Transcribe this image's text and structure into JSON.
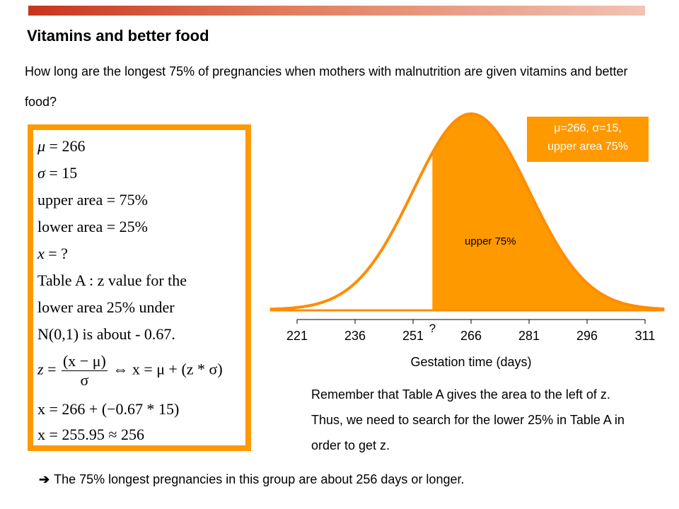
{
  "slide": {
    "title": "Vitamins and better food",
    "question": "How long are the longest 75% of pregnancies when mothers with malnutrition are given vitamins and better food?",
    "remember": "Remember that Table A gives the area to the left of z. Thus, we need to search for the lower 25% in Table A in order to get z.",
    "conclusion_arrow": "➔",
    "conclusion": "The 75% longest pregnancies in this group are about 256 days or longer."
  },
  "equations": {
    "mu_lhs": "μ",
    "mu_rhs": " = 266",
    "sigma_lhs": "σ",
    "sigma_rhs": " = 15",
    "upper": "upper area = 75%",
    "lower": "lower area = 25%",
    "x_lhs": "x",
    "x_rhs": " = ?",
    "table1": "Table A : z value for the",
    "table2": "lower area  25% under",
    "table3": "N(0,1) is about - 0.67.",
    "z_lhs": "z",
    "z_eq": " = ",
    "z_num": "(x − μ)",
    "z_den": "σ",
    "z_iff": " ⇔ x = μ + (z * σ)",
    "calc1": "x = 266 + (−0.67 * 15)",
    "calc2": "x = 255.95 ≈ 256"
  },
  "legend": {
    "line1": "μ=266, σ=15,",
    "line2": "upper area 75%"
  },
  "colors": {
    "accent": "#ff9900",
    "curve": "#ff8c00",
    "bar_start": "#c8341c"
  },
  "chart_data": {
    "type": "area",
    "distribution": "normal",
    "mean": 266,
    "sd": 15,
    "shaded_from": 256,
    "shaded_label": "upper 75%",
    "unknown_label": "?",
    "xlabel": "Gestation time (days)",
    "ylabel": "",
    "xticks": [
      221,
      236,
      251,
      266,
      281,
      296,
      311
    ],
    "xlim": [
      221,
      311
    ]
  }
}
